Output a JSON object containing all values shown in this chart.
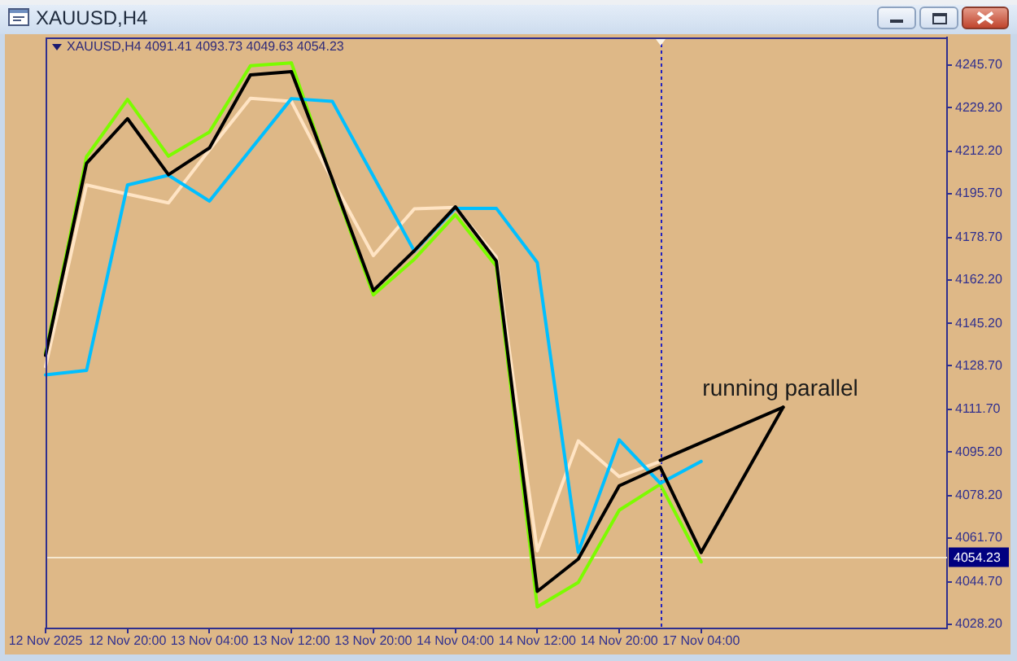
{
  "chart_data": {
    "type": "line",
    "title": "XAUUSD,H4",
    "subtitle": "XAUUSD,H4 4091.41 4093.73 4049.63 4054.23",
    "categories": [
      "12 Nov 2025",
      null,
      "12 Nov 20:00",
      null,
      "13 Nov 04:00",
      null,
      "13 Nov 12:00",
      null,
      "13 Nov 20:00",
      null,
      "14 Nov 04:00",
      null,
      "14 Nov 12:00",
      null,
      "14 Nov 20:00",
      null,
      "17 Nov 04:00",
      null,
      null,
      null,
      null,
      null,
      null
    ],
    "series": [
      {
        "color": "#000000",
        "values": [
          4132.8,
          4207.5,
          4224.9,
          4203.1,
          4213.5,
          4241.9,
          4243.2,
          4201.2,
          4158.0,
          4173.5,
          4190.6,
          4169.5,
          4040.9,
          4053.5,
          4082.0,
          4089.3,
          4056.1,
          null,
          null,
          null,
          null,
          null,
          null
        ]
      },
      {
        "color": "#000000",
        "values": [
          null,
          null,
          null,
          null,
          null,
          null,
          null,
          null,
          null,
          null,
          null,
          null,
          null,
          null,
          null,
          4091.9,
          null,
          null,
          4112.6,
          null,
          null,
          null,
          null
        ]
      },
      {
        "color": "#000000",
        "values": [
          null,
          null,
          null,
          null,
          null,
          null,
          null,
          null,
          null,
          null,
          null,
          null,
          null,
          null,
          null,
          null,
          4056.1,
          null,
          4112.6,
          null,
          null,
          null,
          null
        ]
      },
      {
        "color": "#00bfff",
        "values": [
          4125.2,
          4126.9,
          4199.1,
          4202.9,
          4192.8,
          4212.8,
          4232.7,
          4231.6,
          4202.5,
          4173.3,
          4190.0,
          4190.0,
          4168.9,
          4056.1,
          4099.9,
          4083.0,
          4091.5,
          null,
          null,
          null,
          null,
          null,
          null
        ]
      },
      {
        "color": "#ffe4c4",
        "values": [
          4128.4,
          4199.1,
          4195.5,
          4192.1,
          4212.8,
          4232.8,
          4231.6,
          4201.0,
          4171.6,
          4189.8,
          4190.4,
          4171.0,
          4056.7,
          4099.5,
          4085.6,
          4091.5,
          null,
          null,
          null,
          null,
          null,
          null,
          null
        ]
      },
      {
        "color": "#7cfc00",
        "values": [
          4133.5,
          4210.1,
          4232.4,
          4210.3,
          4219.7,
          4245.5,
          4246.6,
          4200.6,
          4156.3,
          4170.2,
          4187.5,
          4167.5,
          4034.9,
          4044.4,
          4072.5,
          4082.6,
          4052.4,
          null,
          null,
          null,
          null,
          null,
          null
        ]
      }
    ],
    "ylim": [
      4026.5,
      4256.5
    ],
    "yticks": [
      {
        "value": 4028.2,
        "label": "4028.20"
      },
      {
        "value": 4044.7,
        "label": "4044.70"
      },
      {
        "value": 4061.7,
        "label": "4061.70"
      },
      {
        "value": 4078.2,
        "label": "4078.20"
      },
      {
        "value": 4095.2,
        "label": "4095.20"
      },
      {
        "value": 4111.7,
        "label": "4111.70"
      },
      {
        "value": 4128.7,
        "label": "4128.70"
      },
      {
        "value": 4145.2,
        "label": "4145.20"
      },
      {
        "value": 4162.2,
        "label": "4162.20"
      },
      {
        "value": 4178.7,
        "label": "4178.70"
      },
      {
        "value": 4195.7,
        "label": "4195.70"
      },
      {
        "value": 4212.2,
        "label": "4212.20"
      },
      {
        "value": 4229.2,
        "label": "4229.20"
      },
      {
        "value": 4245.7,
        "label": "4245.70"
      }
    ],
    "ref_lines": [
      {
        "axis": "y",
        "value": 4054.23,
        "label": "4054.23",
        "color": "#f5e8d0"
      }
    ],
    "annotations": [
      {
        "text": "running parallel",
        "y": 4112.6
      }
    ],
    "marker": "none"
  }
}
